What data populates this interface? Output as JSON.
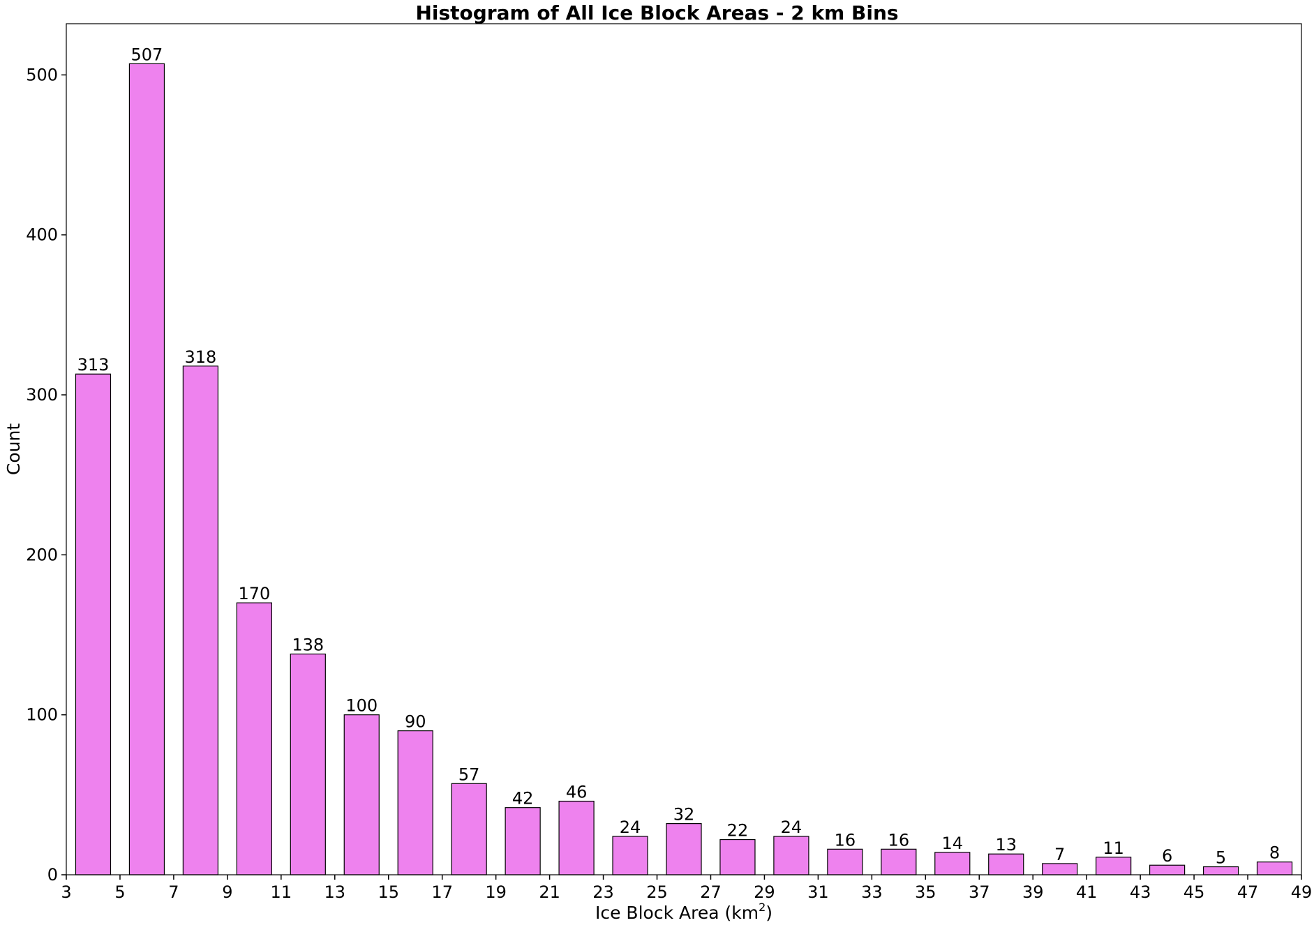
{
  "chart_data": {
    "type": "bar",
    "title": "Histogram of All Ice Block Areas - 2 km Bins",
    "xlabel": "Ice Block Area (km",
    "xlabel_sup": "2",
    "xlabel_close": ")",
    "ylabel": "Count",
    "xlim": [
      3,
      49
    ],
    "ylim": [
      0,
      532
    ],
    "bar_width": 1.3,
    "bar_color": "#ee82ee",
    "edge_color": "#000000",
    "grid": false,
    "legend": "none",
    "x": [
      4,
      6,
      8,
      10,
      12,
      14,
      16,
      18,
      20,
      22,
      24,
      26,
      28,
      30,
      32,
      34,
      36,
      38,
      40,
      42,
      44,
      46,
      48
    ],
    "values": [
      313,
      507,
      318,
      170,
      138,
      100,
      90,
      57,
      42,
      46,
      24,
      32,
      22,
      24,
      16,
      16,
      14,
      13,
      7,
      11,
      6,
      5,
      8
    ],
    "data_labels": [
      "313",
      "507",
      "318",
      "170",
      "138",
      "100",
      "90",
      "57",
      "42",
      "46",
      "24",
      "32",
      "22",
      "24",
      "16",
      "16",
      "14",
      "13",
      "7",
      "11",
      "6",
      "5",
      "8"
    ],
    "x_ticks": [
      3,
      5,
      7,
      9,
      11,
      13,
      15,
      17,
      19,
      21,
      23,
      25,
      27,
      29,
      31,
      33,
      35,
      37,
      39,
      41,
      43,
      45,
      47,
      49
    ],
    "x_tick_labels": [
      "3",
      "5",
      "7",
      "9",
      "11",
      "13",
      "15",
      "17",
      "19",
      "21",
      "23",
      "25",
      "27",
      "29",
      "31",
      "33",
      "35",
      "37",
      "39",
      "41",
      "43",
      "45",
      "47",
      "49"
    ],
    "y_ticks": [
      0,
      100,
      200,
      300,
      400,
      500
    ],
    "y_tick_labels": [
      "0",
      "100",
      "200",
      "300",
      "400",
      "500"
    ]
  }
}
